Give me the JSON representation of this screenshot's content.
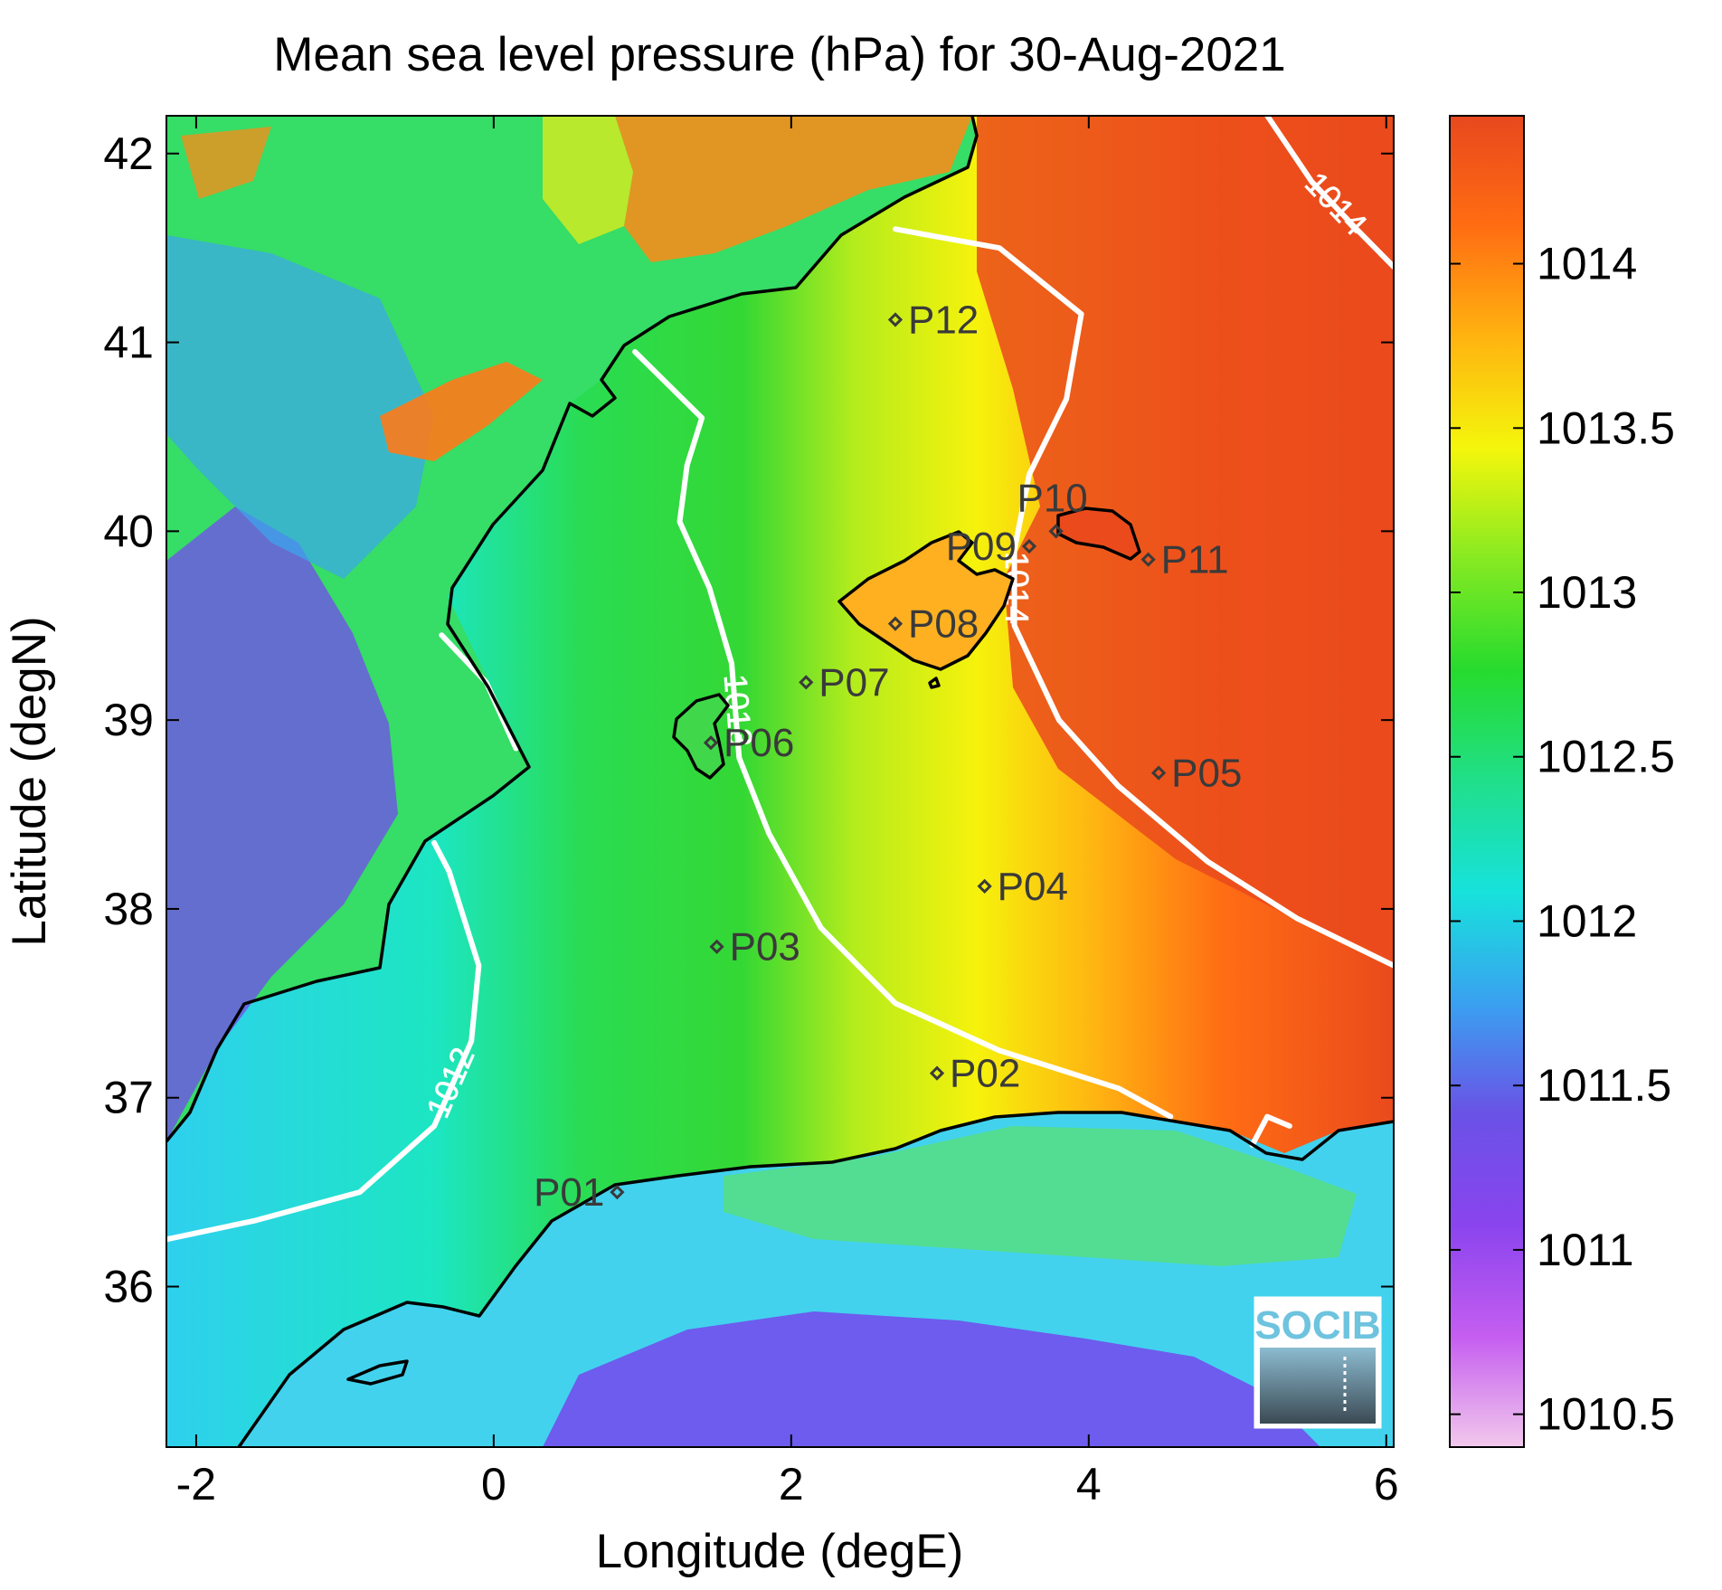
{
  "title": "Mean sea level pressure (hPa) for 30-Aug-2021",
  "xlabel": "Longitude (degE)",
  "ylabel": "Latitude (degN)",
  "logo_text": "SOCIB",
  "map": {
    "xlim": [
      -2.2,
      6.05
    ],
    "ylim": [
      35.15,
      42.2
    ],
    "xticks": [
      -2,
      0,
      2,
      4,
      6
    ],
    "xtick_labels": [
      "-2",
      "0",
      "2",
      "4",
      "6"
    ],
    "yticks": [
      36,
      37,
      38,
      39,
      40,
      41,
      42
    ],
    "ytick_labels": [
      "36",
      "37",
      "38",
      "39",
      "40",
      "41",
      "42"
    ],
    "field": "mean sea level pressure",
    "units": "hPa"
  },
  "colorbar": {
    "range": [
      1010.4,
      1014.45
    ],
    "ticks": [
      1010.5,
      1011,
      1011.5,
      1012,
      1012.5,
      1013,
      1013.5,
      1014
    ],
    "tick_labels": [
      "1010.5",
      "1011",
      "1011.5",
      "1012",
      "1012.5",
      "1013",
      "1013.5",
      "1014"
    ],
    "colormap": [
      "#f2c8ec",
      "#c55ef0",
      "#8a44ee",
      "#6a52e6",
      "#3aa0f0",
      "#17e2dc",
      "#20df8a",
      "#26db2e",
      "#86ea22",
      "#f4f60c",
      "#ffb410",
      "#ff6d12",
      "#e8481e"
    ]
  },
  "contours": [
    {
      "level": 1012,
      "label": "1012",
      "points": [
        [
          -2.2,
          36.25
        ],
        [
          -1.6,
          36.35
        ],
        [
          -0.9,
          36.5
        ],
        [
          -0.4,
          36.85
        ],
        [
          -0.15,
          37.3
        ],
        [
          -0.1,
          37.7
        ],
        [
          -0.3,
          38.2
        ],
        [
          -0.4,
          38.35
        ]
      ]
    },
    {
      "level": 1012,
      "label": "",
      "points": [
        [
          -0.35,
          39.45
        ],
        [
          -0.05,
          39.2
        ],
        [
          0.15,
          38.85
        ]
      ]
    },
    {
      "level": 1013,
      "label": "1013",
      "points": [
        [
          0.95,
          40.95
        ],
        [
          1.4,
          40.6
        ],
        [
          1.3,
          40.35
        ],
        [
          1.25,
          40.05
        ],
        [
          1.45,
          39.7
        ],
        [
          1.6,
          39.3
        ],
        [
          1.65,
          38.8
        ],
        [
          1.85,
          38.4
        ],
        [
          2.2,
          37.9
        ],
        [
          2.7,
          37.5
        ],
        [
          3.4,
          37.25
        ],
        [
          4.2,
          37.05
        ],
        [
          4.55,
          36.9
        ]
      ]
    },
    {
      "level": 1014,
      "label": "1014",
      "points": [
        [
          2.7,
          41.6
        ],
        [
          3.4,
          41.5
        ],
        [
          3.95,
          41.15
        ],
        [
          3.85,
          40.7
        ],
        [
          3.6,
          40.3
        ],
        [
          3.5,
          39.9
        ],
        [
          3.5,
          39.5
        ],
        [
          3.8,
          39.0
        ],
        [
          4.2,
          38.65
        ],
        [
          4.8,
          38.25
        ],
        [
          5.4,
          37.95
        ],
        [
          6.05,
          37.7
        ]
      ]
    },
    {
      "level": 1014,
      "label": "1014",
      "points": [
        [
          5.2,
          42.2
        ],
        [
          5.5,
          41.85
        ],
        [
          5.8,
          41.6
        ],
        [
          6.05,
          41.4
        ]
      ]
    },
    {
      "level": 1014,
      "label": "",
      "points": [
        [
          5.1,
          36.75
        ],
        [
          5.2,
          36.9
        ],
        [
          5.35,
          36.85
        ]
      ]
    }
  ],
  "stations": [
    {
      "label": "P01",
      "lon": 0.83,
      "lat": 36.5,
      "anchor": "left"
    },
    {
      "label": "P02",
      "lon": 2.98,
      "lat": 37.13,
      "anchor": "right"
    },
    {
      "label": "P03",
      "lon": 1.5,
      "lat": 37.8,
      "anchor": "right"
    },
    {
      "label": "P04",
      "lon": 3.3,
      "lat": 38.12,
      "anchor": "right"
    },
    {
      "label": "P05",
      "lon": 4.47,
      "lat": 38.72,
      "anchor": "right"
    },
    {
      "label": "P06",
      "lon": 1.46,
      "lat": 38.88,
      "anchor": "right"
    },
    {
      "label": "P07",
      "lon": 2.1,
      "lat": 39.2,
      "anchor": "right"
    },
    {
      "label": "P08",
      "lon": 2.7,
      "lat": 39.51,
      "anchor": "right"
    },
    {
      "label": "P09",
      "lon": 3.6,
      "lat": 39.92,
      "anchor": "left"
    },
    {
      "label": "P10",
      "lon": 3.78,
      "lat": 40.0,
      "anchor": "above"
    },
    {
      "label": "P11",
      "lon": 4.4,
      "lat": 39.85,
      "anchor": "right"
    },
    {
      "label": "P12",
      "lon": 2.7,
      "lat": 41.12,
      "anchor": "right"
    }
  ]
}
